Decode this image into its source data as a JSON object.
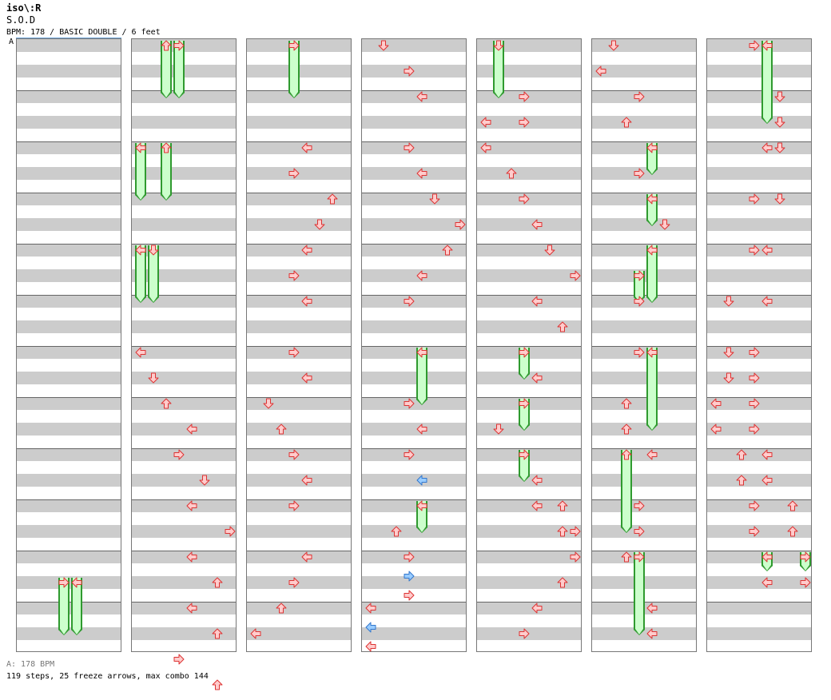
{
  "header": {
    "title": "iso\\:R",
    "song": "S.O.D",
    "info": "BPM: 178 / BASIC DOUBLE / 6 feet"
  },
  "section_label": "A",
  "footer": {
    "bpm_line": "A: 178 BPM",
    "summary": "119 steps, 25 freeze arrows, max combo 144"
  },
  "colors": {
    "tap_fill": "#ffcccc",
    "tap_stroke": "#dd3333",
    "shock_fill": "#99ccff",
    "shock_stroke": "#3377cc",
    "freeze_fill": "#ccffcc",
    "freeze_stroke": "#2f9a2f",
    "band_gray": "#cccccc"
  },
  "lanes": [
    "left",
    "down",
    "up",
    "right",
    "left",
    "down",
    "up",
    "right"
  ],
  "columns": [
    {
      "taps": [
        [
          21,
          3
        ],
        [
          21,
          4
        ]
      ],
      "holds": [
        [
          21,
          3,
          23
        ],
        [
          21,
          4,
          23
        ]
      ]
    },
    {
      "taps": [
        [
          0,
          2
        ],
        [
          0,
          3
        ],
        [
          4,
          0
        ],
        [
          4,
          2
        ],
        [
          8,
          0
        ],
        [
          8,
          1
        ],
        [
          12,
          0
        ],
        [
          13,
          1
        ],
        [
          14,
          2
        ],
        [
          15,
          4
        ],
        [
          16,
          3
        ],
        [
          17,
          5
        ],
        [
          18,
          4
        ],
        [
          19,
          7
        ],
        [
          20,
          4
        ],
        [
          21,
          6
        ],
        [
          22,
          4
        ],
        [
          23,
          6
        ],
        [
          24,
          3
        ],
        [
          25,
          6
        ]
      ],
      "holds": [
        [
          0,
          2,
          2
        ],
        [
          0,
          3,
          2
        ],
        [
          4,
          0,
          6
        ],
        [
          4,
          2,
          6
        ],
        [
          8,
          0,
          10
        ],
        [
          8,
          1,
          10
        ]
      ]
    },
    {
      "taps": [
        [
          0,
          3
        ],
        [
          4,
          4
        ],
        [
          5,
          3
        ],
        [
          6,
          6
        ],
        [
          7,
          5
        ],
        [
          8,
          4
        ],
        [
          9,
          3
        ],
        [
          10,
          4
        ],
        [
          12,
          3
        ],
        [
          13,
          4
        ],
        [
          14,
          1
        ],
        [
          15,
          2
        ],
        [
          16,
          3
        ],
        [
          17,
          4
        ],
        [
          18,
          3
        ],
        [
          20,
          4
        ],
        [
          21,
          3
        ],
        [
          22,
          2
        ],
        [
          23,
          0
        ]
      ],
      "holds": [
        [
          0,
          3,
          2
        ]
      ]
    },
    {
      "taps": [
        [
          0,
          1
        ],
        [
          1,
          3
        ],
        [
          2,
          4
        ],
        [
          4,
          3
        ],
        [
          5,
          4
        ],
        [
          6,
          5
        ],
        [
          7,
          7
        ],
        [
          8,
          6
        ],
        [
          9,
          4
        ],
        [
          10,
          3
        ],
        [
          12,
          4
        ],
        [
          14,
          3
        ],
        [
          15,
          4
        ],
        [
          16,
          3
        ],
        [
          17,
          4,
          "s"
        ],
        [
          18,
          4
        ],
        [
          19,
          2
        ],
        [
          20,
          3
        ],
        [
          20.75,
          3,
          "s"
        ],
        [
          21.5,
          3
        ],
        [
          22,
          0
        ],
        [
          22.75,
          0,
          "s"
        ],
        [
          23.5,
          0
        ]
      ],
      "holds": [
        [
          12,
          4,
          14
        ],
        [
          18,
          4,
          19
        ]
      ]
    },
    {
      "taps": [
        [
          0,
          1
        ],
        [
          2,
          3
        ],
        [
          3,
          0
        ],
        [
          3,
          3
        ],
        [
          4,
          0
        ],
        [
          5,
          2
        ],
        [
          6,
          3
        ],
        [
          7,
          4
        ],
        [
          8,
          5
        ],
        [
          9,
          7
        ],
        [
          10,
          4
        ],
        [
          11,
          6
        ],
        [
          12,
          3
        ],
        [
          13,
          4
        ],
        [
          14,
          3
        ],
        [
          15,
          1
        ],
        [
          16,
          3
        ],
        [
          17,
          4
        ],
        [
          18,
          4
        ],
        [
          18,
          6
        ],
        [
          19,
          6
        ],
        [
          19,
          7
        ],
        [
          20,
          7
        ],
        [
          21,
          6
        ],
        [
          22,
          4
        ],
        [
          23,
          3
        ]
      ],
      "holds": [
        [
          0,
          1,
          2
        ],
        [
          12,
          3,
          13
        ],
        [
          14,
          3,
          15
        ],
        [
          16,
          3,
          17
        ]
      ]
    },
    {
      "taps": [
        [
          0,
          1
        ],
        [
          1,
          0
        ],
        [
          2,
          3
        ],
        [
          3,
          2
        ],
        [
          4,
          4
        ],
        [
          5,
          3
        ],
        [
          6,
          4
        ],
        [
          7,
          5
        ],
        [
          8,
          4
        ],
        [
          9,
          3
        ],
        [
          10,
          3
        ],
        [
          12,
          3
        ],
        [
          12,
          4
        ],
        [
          14,
          2
        ],
        [
          15,
          2
        ],
        [
          16,
          2
        ],
        [
          16,
          4
        ],
        [
          18,
          3
        ],
        [
          19,
          3
        ],
        [
          20,
          2
        ],
        [
          20,
          3
        ],
        [
          22,
          4
        ],
        [
          23,
          4
        ]
      ],
      "holds": [
        [
          4,
          4,
          5
        ],
        [
          6,
          4,
          7
        ],
        [
          8,
          4,
          10
        ],
        [
          9,
          3,
          10
        ],
        [
          12,
          4,
          15
        ],
        [
          16,
          2,
          19
        ],
        [
          20,
          3,
          23
        ]
      ]
    },
    {
      "taps": [
        [
          0,
          3
        ],
        [
          0,
          4
        ],
        [
          2,
          5
        ],
        [
          3,
          5
        ],
        [
          4,
          4
        ],
        [
          4,
          5
        ],
        [
          6,
          3
        ],
        [
          6,
          5
        ],
        [
          8,
          3
        ],
        [
          8,
          4
        ],
        [
          10,
          1
        ],
        [
          10,
          4
        ],
        [
          12,
          1
        ],
        [
          12,
          3
        ],
        [
          13,
          1
        ],
        [
          13,
          3
        ],
        [
          14,
          0
        ],
        [
          14,
          3
        ],
        [
          15,
          0
        ],
        [
          15,
          3
        ],
        [
          16,
          2
        ],
        [
          16,
          4
        ],
        [
          17,
          2
        ],
        [
          17,
          4
        ],
        [
          18,
          3
        ],
        [
          18,
          6
        ],
        [
          19,
          3
        ],
        [
          19,
          6
        ],
        [
          20,
          4
        ],
        [
          20,
          7
        ],
        [
          21,
          4
        ],
        [
          21,
          7
        ]
      ],
      "holds": [
        [
          0,
          4,
          3
        ],
        [
          20,
          4,
          20.5
        ],
        [
          20,
          7,
          20.5
        ]
      ]
    }
  ]
}
